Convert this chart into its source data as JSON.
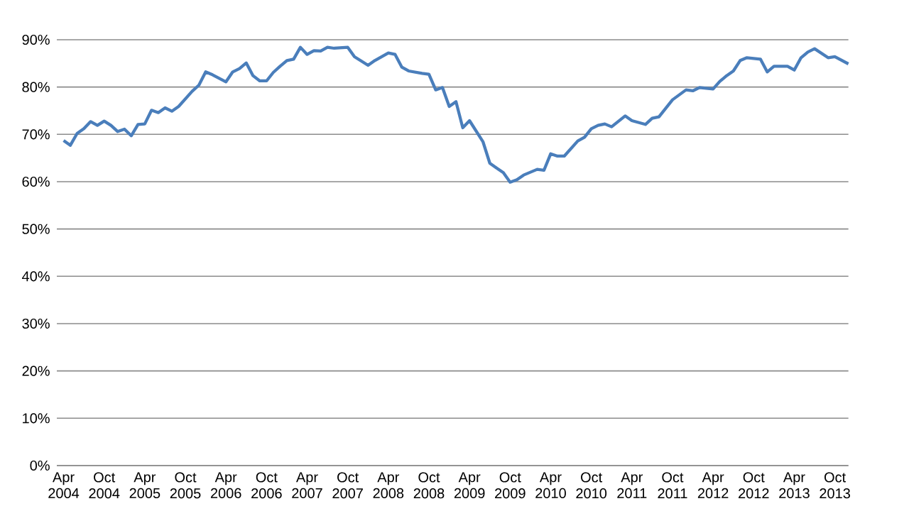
{
  "chart_data": {
    "type": "line",
    "x": [
      "2004-04",
      "2004-05",
      "2004-06",
      "2004-07",
      "2004-08",
      "2004-09",
      "2004-10",
      "2004-11",
      "2004-12",
      "2005-01",
      "2005-02",
      "2005-03",
      "2005-04",
      "2005-05",
      "2005-06",
      "2005-07",
      "2005-08",
      "2005-09",
      "2005-11",
      "2005-12",
      "2006-01",
      "2006-02",
      "2006-04",
      "2006-05",
      "2006-06",
      "2006-07",
      "2006-08",
      "2006-09",
      "2006-10",
      "2006-11",
      "2006-12",
      "2007-01",
      "2007-02",
      "2007-03",
      "2007-04",
      "2007-05",
      "2007-06",
      "2007-07",
      "2007-08",
      "2007-10",
      "2007-11",
      "2008-01",
      "2008-02",
      "2008-04",
      "2008-05",
      "2008-06",
      "2008-07",
      "2008-09",
      "2008-10",
      "2008-11",
      "2008-12",
      "2009-01",
      "2009-02",
      "2009-03",
      "2009-04",
      "2009-06",
      "2009-07",
      "2009-08",
      "2009-09",
      "2009-10",
      "2009-11",
      "2009-12",
      "2010-02",
      "2010-03",
      "2010-04",
      "2010-05",
      "2010-06",
      "2010-08",
      "2010-09",
      "2010-10",
      "2010-11",
      "2010-12",
      "2011-01",
      "2011-03",
      "2011-04",
      "2011-06",
      "2011-07",
      "2011-08",
      "2011-09",
      "2011-10",
      "2011-12",
      "2012-01",
      "2012-02",
      "2012-04",
      "2012-05",
      "2012-06",
      "2012-07",
      "2012-08",
      "2012-09",
      "2012-11",
      "2012-12",
      "2013-01",
      "2013-03",
      "2013-04",
      "2013-05",
      "2013-06",
      "2013-07",
      "2013-09",
      "2013-10",
      "2013-12"
    ],
    "values": [
      68.7,
      67.7,
      70.2,
      71.2,
      72.7,
      71.9,
      72.8,
      71.9,
      70.6,
      71.1,
      69.7,
      72.1,
      72.2,
      75.1,
      74.6,
      75.6,
      74.9,
      75.9,
      79.1,
      80.4,
      83.2,
      82.6,
      81.1,
      83.2,
      83.9,
      85.1,
      82.4,
      81.3,
      81.3,
      83.1,
      84.4,
      85.6,
      85.9,
      88.4,
      86.9,
      87.7,
      87.6,
      88.4,
      88.2,
      88.4,
      86.4,
      84.6,
      85.6,
      87.2,
      86.9,
      84.2,
      83.4,
      82.9,
      82.7,
      79.4,
      79.9,
      75.9,
      76.9,
      71.4,
      72.9,
      68.4,
      63.9,
      62.9,
      61.9,
      59.9,
      60.4,
      61.4,
      62.6,
      62.4,
      65.9,
      65.4,
      65.4,
      68.6,
      69.4,
      71.2,
      71.9,
      72.2,
      71.6,
      73.9,
      72.9,
      72.1,
      73.4,
      73.7,
      75.5,
      77.3,
      79.4,
      79.2,
      79.9,
      79.6,
      81.2,
      82.4,
      83.4,
      85.6,
      86.2,
      85.9,
      83.2,
      84.4,
      84.4,
      83.6,
      86.2,
      87.4,
      88.1,
      86.2,
      86.4,
      84.9
    ],
    "color": "#4a7ebb",
    "xlim": [
      "2004-03",
      "2013-12"
    ],
    "ylim": [
      0,
      90
    ],
    "xticks": [
      {
        "value": "2004-04",
        "label": "Apr 2004"
      },
      {
        "value": "2004-10",
        "label": "Oct 2004"
      },
      {
        "value": "2005-04",
        "label": "Apr 2005"
      },
      {
        "value": "2005-10",
        "label": "Oct 2005"
      },
      {
        "value": "2006-04",
        "label": "Apr 2006"
      },
      {
        "value": "2006-10",
        "label": "Oct 2006"
      },
      {
        "value": "2007-04",
        "label": "Apr 2007"
      },
      {
        "value": "2007-10",
        "label": "Oct 2007"
      },
      {
        "value": "2008-04",
        "label": "Apr 2008"
      },
      {
        "value": "2008-10",
        "label": "Oct 2008"
      },
      {
        "value": "2009-04",
        "label": "Apr 2009"
      },
      {
        "value": "2009-10",
        "label": "Oct 2009"
      },
      {
        "value": "2010-04",
        "label": "Apr 2010"
      },
      {
        "value": "2010-10",
        "label": "Oct 2010"
      },
      {
        "value": "2011-04",
        "label": "Apr 2011"
      },
      {
        "value": "2011-10",
        "label": "Oct 2011"
      },
      {
        "value": "2012-04",
        "label": "Apr 2012"
      },
      {
        "value": "2012-10",
        "label": "Oct 2012"
      },
      {
        "value": "2013-04",
        "label": "Apr 2013"
      },
      {
        "value": "2013-10",
        "label": "Oct 2013"
      }
    ],
    "yticks": [
      {
        "value": 0,
        "label": "0%"
      },
      {
        "value": 10,
        "label": "10%"
      },
      {
        "value": 20,
        "label": "20%"
      },
      {
        "value": 30,
        "label": "30%"
      },
      {
        "value": 40,
        "label": "40%"
      },
      {
        "value": 50,
        "label": "50%"
      },
      {
        "value": 60,
        "label": "60%"
      },
      {
        "value": 70,
        "label": "70%"
      },
      {
        "value": 80,
        "label": "80%"
      },
      {
        "value": 90,
        "label": "90%"
      }
    ],
    "grid": "y"
  }
}
